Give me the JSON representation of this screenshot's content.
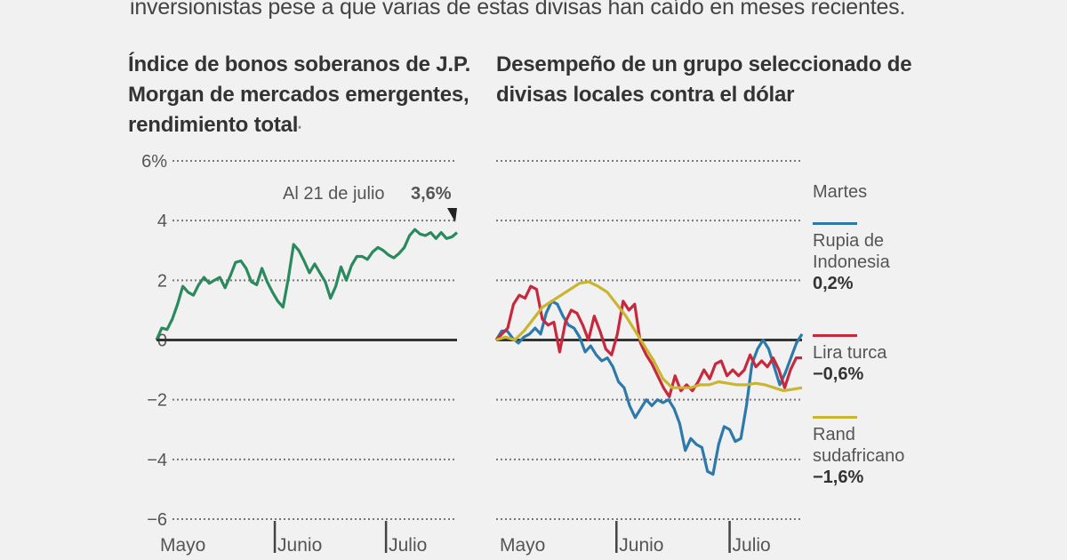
{
  "intro_text": "inversionistas pese a que varias de estas divisas han caído en meses recientes.",
  "chart_data": [
    {
      "type": "line",
      "title": "Índice de bonos soberanos de J.P. Morgan de mercados emergentes, rendimiento total",
      "title_footnote_mark": "*",
      "xlabel": "",
      "ylabel": "",
      "ylim": [
        -6,
        6
      ],
      "yticks": [
        6,
        4,
        2,
        0,
        -2,
        -4,
        -6
      ],
      "ytick_labels": [
        "6%",
        "4",
        "2",
        "0",
        "−2",
        "−4",
        "−6"
      ],
      "x_tick_labels": [
        "Mayo",
        "Junio",
        "Julio"
      ],
      "x_tick_positions": [
        0,
        0.37,
        0.74
      ],
      "grid": true,
      "annotation": {
        "label": "Al 21 de julio",
        "value": "3,6%"
      },
      "series": [
        {
          "name": "Índice de bonos",
          "color": "#2a8a5e",
          "values": [
            0.0,
            0.4,
            0.35,
            0.7,
            1.2,
            1.8,
            1.6,
            1.5,
            1.85,
            2.1,
            1.9,
            2.0,
            2.1,
            1.75,
            2.15,
            2.6,
            2.65,
            2.4,
            1.95,
            1.85,
            2.4,
            1.95,
            1.6,
            1.3,
            1.1,
            2.05,
            3.2,
            3.0,
            2.65,
            2.25,
            2.55,
            2.25,
            1.95,
            1.4,
            1.8,
            2.45,
            2.0,
            2.5,
            2.8,
            2.8,
            2.7,
            2.95,
            3.1,
            3.0,
            2.85,
            2.75,
            2.9,
            3.1,
            3.5,
            3.7,
            3.55,
            3.5,
            3.6,
            3.4,
            3.6,
            3.4,
            3.45,
            3.6
          ]
        }
      ]
    },
    {
      "type": "line",
      "title": "Desempeño de un grupo seleccionado de divisas locales contra el dólar",
      "xlabel": "",
      "ylabel": "",
      "ylim": [
        -6,
        6
      ],
      "yticks": [
        6,
        4,
        2,
        0,
        -2,
        -4,
        -6
      ],
      "x_tick_labels": [
        "Mayo",
        "Junio",
        "Julio"
      ],
      "x_tick_positions": [
        0,
        0.37,
        0.74
      ],
      "grid": true,
      "legend_heading": "Martes",
      "legend_position": "right",
      "series": [
        {
          "name": "Rupia de Indonesia",
          "value_label": "0,2%",
          "color": "#2d7aaa",
          "values": [
            0.0,
            0.3,
            0.3,
            0.05,
            -0.1,
            0.1,
            0.2,
            0.4,
            0.2,
            0.9,
            1.3,
            1.2,
            0.8,
            0.5,
            0.4,
            0.1,
            -0.4,
            -0.2,
            -0.5,
            -0.7,
            -0.6,
            -0.9,
            -1.4,
            -1.6,
            -2.2,
            -2.6,
            -2.3,
            -2.0,
            -2.2,
            -2.0,
            -2.1,
            -2.0,
            -2.3,
            -2.8,
            -3.7,
            -3.3,
            -3.5,
            -3.6,
            -4.4,
            -4.5,
            -3.5,
            -2.9,
            -3.0,
            -3.4,
            -3.3,
            -2.2,
            -0.8,
            -0.3,
            0.0,
            -0.3,
            -0.9,
            -1.5,
            -1.1,
            -0.6,
            -0.1,
            0.2
          ]
        },
        {
          "name": "Lira turca",
          "value_label": "−0,6%",
          "color": "#c8283c",
          "values": [
            0.0,
            0.2,
            0.4,
            1.2,
            1.5,
            1.4,
            1.8,
            1.7,
            0.7,
            0.5,
            0.6,
            -0.4,
            0.6,
            1.0,
            0.9,
            0.5,
            0.0,
            0.8,
            0.3,
            -0.3,
            -0.5,
            0.2,
            1.3,
            1.0,
            1.2,
            -0.1,
            -0.5,
            -0.8,
            -1.2,
            -1.6,
            -1.9,
            -1.2,
            -1.7,
            -1.5,
            -1.7,
            -1.4,
            -1.0,
            -1.3,
            -0.8,
            -0.7,
            -1.2,
            -1.0,
            -1.2,
            -1.0,
            -0.5,
            -0.9,
            -0.7,
            -0.9,
            -0.6,
            -1.0,
            -1.6,
            -1.0,
            -0.6,
            -0.6
          ]
        },
        {
          "name": "Rand sudafricano",
          "value_label": "−1,6%",
          "color": "#c9b52e",
          "values": [
            0.0,
            0.1,
            0.0,
            0.3,
            0.7,
            1.1,
            1.3,
            1.5,
            1.7,
            1.9,
            1.95,
            1.8,
            1.6,
            1.2,
            0.8,
            0.3,
            -0.2,
            -0.7,
            -1.3,
            -1.6,
            -1.6,
            -1.6,
            -1.5,
            -1.5,
            -1.4,
            -1.45,
            -1.5,
            -1.5,
            -1.45,
            -1.5,
            -1.6,
            -1.7,
            -1.65,
            -1.6
          ]
        }
      ]
    }
  ]
}
